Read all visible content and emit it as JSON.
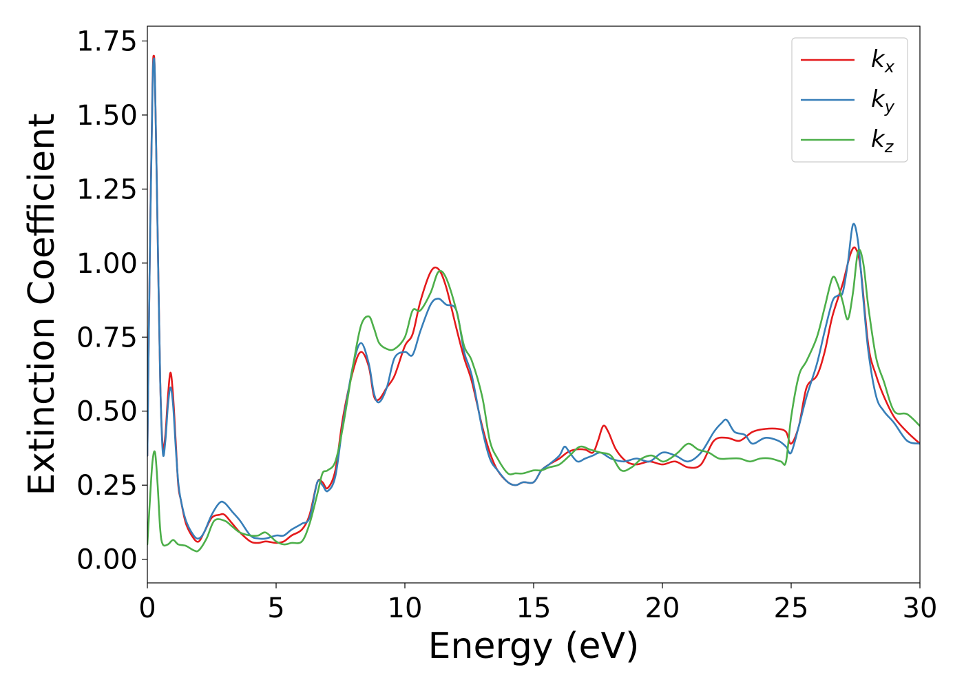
{
  "chart_data": {
    "type": "line",
    "title": "",
    "xlabel": "Energy (eV)",
    "ylabel": "Extinction Coefficient",
    "xlim": [
      0,
      30
    ],
    "ylim": [
      -0.08,
      1.8
    ],
    "xticks": [
      0,
      5,
      10,
      15,
      20,
      25,
      30
    ],
    "xtick_labels": [
      "0",
      "5",
      "10",
      "15",
      "20",
      "25",
      "30"
    ],
    "yticks": [
      0.0,
      0.25,
      0.5,
      0.75,
      1.0,
      1.25,
      1.5,
      1.75
    ],
    "ytick_labels": [
      "0.00",
      "0.25",
      "0.50",
      "0.75",
      "1.00",
      "1.25",
      "1.50",
      "1.75"
    ],
    "grid": false,
    "legend_position": "top-right",
    "series": [
      {
        "name": "k_x",
        "legend_base": "k",
        "legend_sub": "x",
        "color": "#e41a1c",
        "x": [
          0,
          0.1,
          0.2,
          0.25,
          0.3,
          0.4,
          0.5,
          0.6,
          0.7,
          0.8,
          0.9,
          1.0,
          1.1,
          1.2,
          1.3,
          1.5,
          1.8,
          2.0,
          2.2,
          2.5,
          2.8,
          3.0,
          3.3,
          3.6,
          4.0,
          4.3,
          4.6,
          5.0,
          5.3,
          5.6,
          6.0,
          6.3,
          6.6,
          6.8,
          7.0,
          7.3,
          7.6,
          8.0,
          8.3,
          8.6,
          8.8,
          9.0,
          9.3,
          9.6,
          10.0,
          10.3,
          10.6,
          11.0,
          11.3,
          11.6,
          12.0,
          12.3,
          12.6,
          13.0,
          13.3,
          13.6,
          14.0,
          14.3,
          14.6,
          15.0,
          15.3,
          15.6,
          16.0,
          16.3,
          16.6,
          17.0,
          17.3,
          17.5,
          17.7,
          17.9,
          18.2,
          18.6,
          19.0,
          19.5,
          20.0,
          20.5,
          21.0,
          21.5,
          22.0,
          22.5,
          23.0,
          23.5,
          24.0,
          24.5,
          24.8,
          25.0,
          25.3,
          25.6,
          26.0,
          26.3,
          26.6,
          27.0,
          27.3,
          27.5,
          27.7,
          28.0,
          28.3,
          28.6,
          29.0,
          29.5,
          30.0
        ],
        "y": [
          0.35,
          1.05,
          1.6,
          1.7,
          1.6,
          1.1,
          0.6,
          0.38,
          0.42,
          0.55,
          0.63,
          0.55,
          0.4,
          0.25,
          0.2,
          0.12,
          0.07,
          0.06,
          0.09,
          0.14,
          0.15,
          0.15,
          0.12,
          0.09,
          0.06,
          0.055,
          0.06,
          0.055,
          0.06,
          0.08,
          0.1,
          0.15,
          0.26,
          0.26,
          0.24,
          0.3,
          0.48,
          0.64,
          0.7,
          0.65,
          0.55,
          0.54,
          0.58,
          0.62,
          0.72,
          0.76,
          0.87,
          0.97,
          0.98,
          0.92,
          0.78,
          0.68,
          0.6,
          0.45,
          0.36,
          0.3,
          0.26,
          0.25,
          0.26,
          0.26,
          0.3,
          0.32,
          0.34,
          0.36,
          0.37,
          0.37,
          0.36,
          0.4,
          0.45,
          0.43,
          0.37,
          0.33,
          0.32,
          0.33,
          0.32,
          0.33,
          0.31,
          0.32,
          0.4,
          0.41,
          0.4,
          0.43,
          0.44,
          0.44,
          0.43,
          0.39,
          0.45,
          0.58,
          0.62,
          0.7,
          0.82,
          0.93,
          1.03,
          1.05,
          0.98,
          0.72,
          0.62,
          0.55,
          0.48,
          0.43,
          0.39
        ]
      },
      {
        "name": "k_y",
        "legend_base": "k",
        "legend_sub": "y",
        "color": "#377eb8",
        "x": [
          0,
          0.1,
          0.2,
          0.25,
          0.3,
          0.4,
          0.5,
          0.6,
          0.7,
          0.8,
          0.9,
          1.0,
          1.1,
          1.2,
          1.3,
          1.5,
          1.8,
          2.0,
          2.2,
          2.5,
          2.8,
          3.0,
          3.3,
          3.6,
          4.0,
          4.3,
          4.6,
          5.0,
          5.3,
          5.6,
          6.0,
          6.3,
          6.6,
          6.8,
          7.0,
          7.3,
          7.6,
          8.0,
          8.3,
          8.6,
          8.8,
          9.0,
          9.3,
          9.6,
          10.0,
          10.3,
          10.6,
          11.0,
          11.3,
          11.6,
          12.0,
          12.3,
          12.6,
          13.0,
          13.3,
          13.6,
          14.0,
          14.3,
          14.6,
          15.0,
          15.3,
          15.6,
          16.0,
          16.2,
          16.4,
          16.7,
          17.0,
          17.3,
          17.6,
          18.0,
          18.5,
          19.0,
          19.5,
          20.0,
          20.5,
          21.0,
          21.5,
          22.0,
          22.3,
          22.5,
          22.8,
          23.2,
          23.5,
          24.0,
          24.5,
          24.8,
          25.0,
          25.3,
          25.6,
          26.0,
          26.3,
          26.6,
          26.8,
          27.0,
          27.2,
          27.4,
          27.6,
          27.8,
          28.0,
          28.3,
          28.6,
          29.0,
          29.5,
          30.0
        ],
        "y": [
          0.35,
          1.05,
          1.58,
          1.69,
          1.6,
          1.1,
          0.6,
          0.36,
          0.4,
          0.52,
          0.58,
          0.52,
          0.38,
          0.26,
          0.2,
          0.13,
          0.08,
          0.07,
          0.09,
          0.15,
          0.19,
          0.19,
          0.16,
          0.13,
          0.08,
          0.07,
          0.07,
          0.08,
          0.08,
          0.1,
          0.12,
          0.14,
          0.26,
          0.25,
          0.23,
          0.28,
          0.46,
          0.66,
          0.73,
          0.66,
          0.56,
          0.53,
          0.58,
          0.68,
          0.7,
          0.69,
          0.77,
          0.86,
          0.88,
          0.86,
          0.84,
          0.7,
          0.62,
          0.44,
          0.34,
          0.3,
          0.26,
          0.25,
          0.26,
          0.26,
          0.3,
          0.32,
          0.35,
          0.38,
          0.36,
          0.33,
          0.34,
          0.35,
          0.36,
          0.34,
          0.33,
          0.34,
          0.33,
          0.36,
          0.35,
          0.33,
          0.36,
          0.43,
          0.46,
          0.47,
          0.43,
          0.42,
          0.39,
          0.41,
          0.4,
          0.38,
          0.36,
          0.45,
          0.55,
          0.66,
          0.77,
          0.87,
          0.89,
          0.9,
          1.0,
          1.13,
          1.07,
          0.88,
          0.7,
          0.55,
          0.5,
          0.46,
          0.4,
          0.39
        ]
      },
      {
        "name": "k_z",
        "legend_base": "k",
        "legend_sub": "z",
        "color": "#4daf4a",
        "x": [
          0,
          0.1,
          0.2,
          0.3,
          0.4,
          0.5,
          0.6,
          0.8,
          1.0,
          1.2,
          1.5,
          1.8,
          2.0,
          2.3,
          2.6,
          3.0,
          3.3,
          3.6,
          4.0,
          4.3,
          4.6,
          5.0,
          5.3,
          5.6,
          6.0,
          6.3,
          6.6,
          6.8,
          7.0,
          7.3,
          7.6,
          8.0,
          8.3,
          8.6,
          8.8,
          9.0,
          9.3,
          9.6,
          10.0,
          10.3,
          10.6,
          11.0,
          11.3,
          11.6,
          12.0,
          12.3,
          12.6,
          13.0,
          13.3,
          13.6,
          14.0,
          14.3,
          14.6,
          15.0,
          15.3,
          15.6,
          16.0,
          16.4,
          16.8,
          17.2,
          17.6,
          18.0,
          18.4,
          18.8,
          19.2,
          19.6,
          20.0,
          20.3,
          20.6,
          21.0,
          21.4,
          21.8,
          22.2,
          22.6,
          23.0,
          23.4,
          23.8,
          24.2,
          24.6,
          24.8,
          25.0,
          25.3,
          25.6,
          26.0,
          26.3,
          26.6,
          26.8,
          27.0,
          27.2,
          27.4,
          27.6,
          27.8,
          28.0,
          28.3,
          28.6,
          29.0,
          29.5,
          30.0
        ],
        "y": [
          0.05,
          0.2,
          0.33,
          0.36,
          0.25,
          0.1,
          0.05,
          0.05,
          0.065,
          0.05,
          0.045,
          0.03,
          0.03,
          0.07,
          0.13,
          0.13,
          0.11,
          0.09,
          0.08,
          0.08,
          0.09,
          0.06,
          0.05,
          0.055,
          0.06,
          0.12,
          0.22,
          0.29,
          0.3,
          0.33,
          0.45,
          0.66,
          0.79,
          0.82,
          0.78,
          0.73,
          0.71,
          0.71,
          0.75,
          0.84,
          0.84,
          0.9,
          0.97,
          0.95,
          0.84,
          0.72,
          0.67,
          0.55,
          0.4,
          0.34,
          0.29,
          0.29,
          0.29,
          0.3,
          0.3,
          0.31,
          0.32,
          0.35,
          0.38,
          0.37,
          0.36,
          0.35,
          0.3,
          0.31,
          0.34,
          0.35,
          0.33,
          0.34,
          0.36,
          0.39,
          0.37,
          0.36,
          0.34,
          0.34,
          0.34,
          0.33,
          0.34,
          0.34,
          0.33,
          0.33,
          0.48,
          0.62,
          0.67,
          0.75,
          0.85,
          0.95,
          0.93,
          0.87,
          0.81,
          0.9,
          1.04,
          1.0,
          0.85,
          0.68,
          0.6,
          0.5,
          0.49,
          0.45
        ]
      }
    ]
  }
}
